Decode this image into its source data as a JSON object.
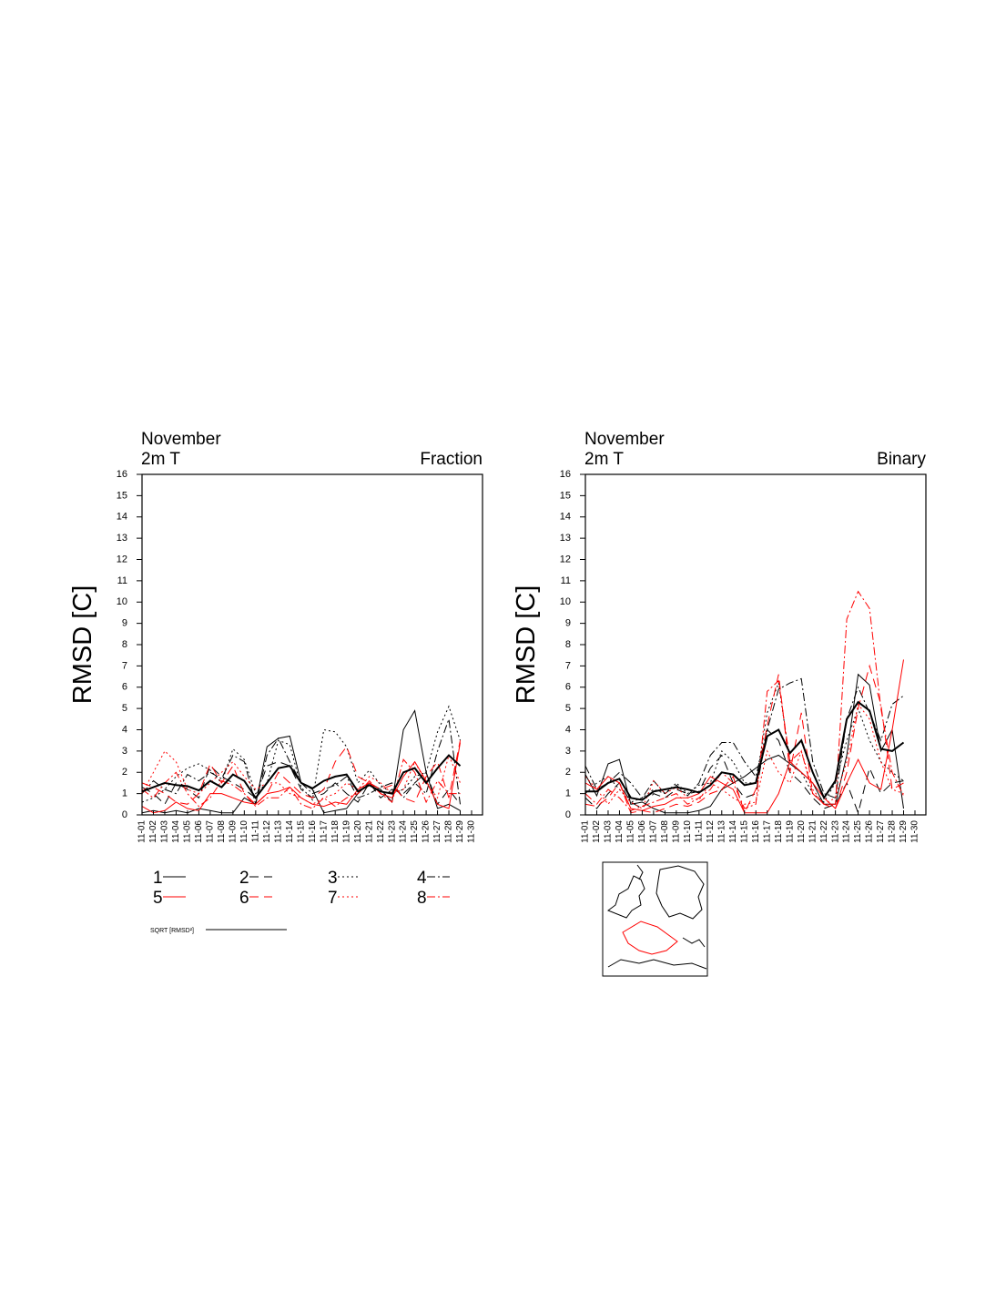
{
  "chart_data": [
    {
      "type": "line",
      "title": "November",
      "subtitle": "2m T",
      "annotation": "Fraction",
      "ylabel": "RMSD [C]",
      "categories": [
        "11-01",
        "11-02",
        "11-03",
        "11-04",
        "11-05",
        "11-06",
        "11-07",
        "11-08",
        "11-09",
        "11-10",
        "11-11",
        "11-12",
        "11-13",
        "11-14",
        "11-15",
        "11-16",
        "11-17",
        "11-18",
        "11-19",
        "11-20",
        "11-21",
        "11-22",
        "11-23",
        "11-24",
        "11-25",
        "11-26",
        "11-27",
        "11-28",
        "11-29",
        "11-30"
      ],
      "ylim": [
        0,
        16
      ],
      "yticks": [
        0,
        1,
        2,
        3,
        4,
        5,
        6,
        7,
        8,
        9,
        10,
        11,
        12,
        13,
        14,
        15,
        16
      ],
      "series": [
        {
          "name": "1",
          "color": "#000000",
          "line_style": "solid",
          "values": [
            0.1,
            0.2,
            0.1,
            0.2,
            0.1,
            0.3,
            0.2,
            0.1,
            0.1,
            0.8,
            0.5,
            3.2,
            3.6,
            3.7,
            1.5,
            1.2,
            0.1,
            0.2,
            0.3,
            1.0,
            1.5,
            1.2,
            0.6,
            4.0,
            4.9,
            2.0,
            0.3,
            0.5,
            0.2,
            null
          ]
        },
        {
          "name": "2",
          "color": "#000000",
          "line_style": "dashed",
          "values": [
            1.3,
            1.0,
            0.5,
            1.5,
            1.2,
            0.8,
            2.3,
            1.8,
            1.5,
            1.2,
            0.8,
            2.3,
            2.5,
            2.3,
            1.2,
            0.8,
            1.0,
            1.5,
            1.0,
            0.6,
            1.5,
            0.8,
            1.2,
            1.0,
            1.5,
            2.0,
            0.5,
            1.2,
            0.5,
            null
          ]
        },
        {
          "name": "3",
          "color": "#000000",
          "line_style": "dotted",
          "values": [
            0.6,
            0.8,
            1.2,
            1.8,
            2.2,
            2.4,
            2.1,
            1.5,
            3.1,
            2.6,
            1.0,
            1.5,
            3.5,
            3.3,
            1.3,
            0.7,
            4.0,
            3.9,
            3.2,
            1.5,
            2.1,
            1.4,
            1.0,
            1.2,
            1.8,
            2.0,
            3.9,
            5.1,
            3.5,
            null
          ]
        },
        {
          "name": "4",
          "color": "#000000",
          "line_style": "dashdot",
          "values": [
            1.0,
            1.6,
            1.2,
            1.0,
            1.9,
            1.6,
            2.0,
            1.7,
            2.8,
            2.5,
            0.5,
            2.8,
            3.6,
            2.5,
            1.5,
            1.0,
            1.2,
            1.4,
            1.8,
            0.8,
            1.0,
            1.3,
            1.5,
            0.8,
            1.5,
            1.0,
            3.0,
            4.5,
            0.5,
            null
          ]
        },
        {
          "name": "5",
          "color": "#ff0000",
          "line_style": "solid",
          "values": [
            0.4,
            0.1,
            0.2,
            0.6,
            0.3,
            0.2,
            1.0,
            1.0,
            0.8,
            0.6,
            0.5,
            1.0,
            1.1,
            1.3,
            0.8,
            0.5,
            0.4,
            0.6,
            0.5,
            1.2,
            1.5,
            1.0,
            0.8,
            1.8,
            2.5,
            1.6,
            0.5,
            0.3,
            3.4,
            null
          ]
        },
        {
          "name": "6",
          "color": "#ff0000",
          "line_style": "dashed",
          "values": [
            1.5,
            1.3,
            1.0,
            0.6,
            0.5,
            1.0,
            2.4,
            1.5,
            2.3,
            1.0,
            0.5,
            1.0,
            2.0,
            1.5,
            1.0,
            0.8,
            1.2,
            2.5,
            3.2,
            1.8,
            1.5,
            1.2,
            1.4,
            0.8,
            0.6,
            1.8,
            2.5,
            0.8,
            3.5,
            null
          ]
        },
        {
          "name": "7",
          "color": "#ff0000",
          "line_style": "dotted",
          "values": [
            1.0,
            2.0,
            3.0,
            2.5,
            1.2,
            1.0,
            1.5,
            2.0,
            2.5,
            1.8,
            1.2,
            1.5,
            1.5,
            1.0,
            0.8,
            0.5,
            0.8,
            1.0,
            1.5,
            1.2,
            1.8,
            1.5,
            1.0,
            1.2,
            2.5,
            1.5,
            0.8,
            2.8,
            1.5,
            null
          ]
        },
        {
          "name": "8",
          "color": "#ff0000",
          "line_style": "dashdot",
          "values": [
            1.2,
            0.8,
            1.5,
            2.0,
            1.0,
            0.4,
            0.8,
            1.6,
            1.4,
            1.0,
            0.4,
            0.8,
            0.8,
            1.3,
            0.5,
            0.3,
            0.8,
            0.4,
            0.8,
            1.0,
            1.6,
            1.0,
            0.6,
            2.6,
            2.0,
            0.6,
            1.6,
            1.0,
            1.0,
            null
          ]
        },
        {
          "name": "SQRT [RMSD²]",
          "color": "#000000",
          "line_style": "thick",
          "values": [
            1.1,
            1.3,
            1.5,
            1.4,
            1.35,
            1.15,
            1.6,
            1.3,
            1.9,
            1.6,
            0.8,
            1.5,
            2.2,
            2.3,
            1.5,
            1.25,
            1.6,
            1.8,
            1.9,
            1.1,
            1.4,
            1.1,
            1.0,
            2.0,
            2.2,
            1.5,
            2.2,
            2.8,
            2.3,
            null
          ]
        }
      ]
    },
    {
      "type": "line",
      "title": "November",
      "subtitle": "2m T",
      "annotation": "Binary",
      "ylabel": "RMSD [C]",
      "categories": [
        "11-01",
        "11-02",
        "11-03",
        "11-04",
        "11-05",
        "11-06",
        "11-07",
        "11-08",
        "11-09",
        "11-10",
        "11-11",
        "11-12",
        "11-13",
        "11-14",
        "11-15",
        "11-16",
        "11-17",
        "11-18",
        "11-19",
        "11-20",
        "11-21",
        "11-22",
        "11-23",
        "11-24",
        "11-25",
        "11-26",
        "11-27",
        "11-28",
        "11-29",
        "11-30"
      ],
      "ylim": [
        0,
        16
      ],
      "yticks": [
        0,
        1,
        2,
        3,
        4,
        5,
        6,
        7,
        8,
        9,
        10,
        11,
        12,
        13,
        14,
        15,
        16
      ],
      "series": [
        {
          "color": "#000000",
          "line_style": "solid",
          "values": [
            1.9,
            0.9,
            2.4,
            2.6,
            0.5,
            0.6,
            0.3,
            0.1,
            0.1,
            0.1,
            0.2,
            0.4,
            1.2,
            1.5,
            1.8,
            2.2,
            2.6,
            2.8,
            2.4,
            2.0,
            1.5,
            0.5,
            0.5,
            2.8,
            6.6,
            6.1,
            3.0,
            4.0,
            0.3,
            null
          ]
        },
        {
          "color": "#000000",
          "line_style": "dashed",
          "values": [
            0.8,
            0.3,
            1.0,
            1.5,
            0.6,
            0.3,
            1.0,
            0.8,
            1.2,
            1.0,
            1.1,
            2.2,
            2.8,
            1.5,
            0.8,
            1.0,
            4.0,
            3.5,
            2.0,
            1.5,
            0.8,
            0.3,
            0.5,
            1.5,
            0.1,
            2.2,
            1.0,
            1.5,
            1.6,
            null
          ]
        },
        {
          "color": "#000000",
          "line_style": "dotted",
          "values": [
            1.0,
            1.5,
            1.8,
            1.2,
            0.6,
            0.8,
            1.2,
            1.0,
            1.5,
            1.0,
            1.4,
            1.5,
            3.0,
            2.5,
            1.5,
            1.5,
            4.8,
            6.2,
            2.5,
            2.0,
            1.0,
            0.6,
            1.5,
            3.5,
            5.0,
            3.5,
            2.5,
            2.0,
            1.6,
            null
          ]
        },
        {
          "color": "#000000",
          "line_style": "dashdot",
          "values": [
            2.3,
            1.2,
            1.5,
            2.0,
            1.5,
            0.8,
            1.6,
            1.0,
            1.4,
            0.9,
            1.5,
            2.8,
            3.4,
            3.4,
            2.5,
            1.8,
            4.0,
            5.9,
            6.2,
            6.4,
            2.5,
            1.0,
            0.8,
            4.5,
            6.0,
            4.8,
            3.5,
            5.2,
            5.6,
            null
          ]
        },
        {
          "color": "#ff0000",
          "line_style": "solid",
          "values": [
            1.5,
            1.2,
            1.8,
            1.5,
            0.3,
            0.2,
            0.4,
            0.5,
            0.8,
            0.8,
            1.0,
            1.8,
            1.5,
            1.2,
            0.1,
            0.1,
            0.1,
            1.0,
            2.5,
            2.0,
            1.5,
            0.8,
            0.3,
            1.5,
            2.6,
            1.5,
            1.2,
            4.0,
            7.3,
            null
          ]
        },
        {
          "color": "#ff0000",
          "line_style": "dashed",
          "values": [
            0.5,
            0.4,
            0.8,
            1.5,
            0.1,
            0.2,
            0.1,
            0.3,
            0.5,
            0.4,
            0.6,
            1.0,
            1.2,
            1.8,
            0.1,
            1.2,
            4.2,
            6.6,
            2.0,
            4.8,
            1.0,
            0.5,
            0.3,
            2.0,
            5.0,
            7.0,
            5.2,
            1.2,
            1.5,
            null
          ]
        },
        {
          "color": "#ff0000",
          "line_style": "dotted",
          "values": [
            1.8,
            1.2,
            0.5,
            1.2,
            0.6,
            0.3,
            1.6,
            1.0,
            1.3,
            0.8,
            0.7,
            1.5,
            1.2,
            0.8,
            0.5,
            0.6,
            3.0,
            2.0,
            1.5,
            3.0,
            1.2,
            0.5,
            0.8,
            2.5,
            5.2,
            4.5,
            2.5,
            1.2,
            1.0,
            null
          ]
        },
        {
          "color": "#ff0000",
          "line_style": "dashdot",
          "values": [
            1.0,
            0.5,
            1.2,
            0.8,
            0.2,
            0.4,
            0.6,
            0.8,
            1.0,
            0.5,
            0.8,
            1.2,
            2.0,
            1.5,
            0.3,
            0.5,
            5.8,
            6.3,
            2.5,
            3.0,
            1.0,
            0.5,
            0.5,
            9.2,
            10.5,
            9.7,
            5.0,
            2.0,
            0.9,
            null
          ]
        },
        {
          "color": "#000000",
          "line_style": "thick",
          "values": [
            1.1,
            1.1,
            1.5,
            1.7,
            0.8,
            0.7,
            1.1,
            1.2,
            1.3,
            1.2,
            1.05,
            1.4,
            2.0,
            1.9,
            1.4,
            1.5,
            3.7,
            4.0,
            2.9,
            3.5,
            2.0,
            0.8,
            1.6,
            4.5,
            5.3,
            4.9,
            3.1,
            3.0,
            3.4,
            null
          ]
        }
      ]
    }
  ]
}
